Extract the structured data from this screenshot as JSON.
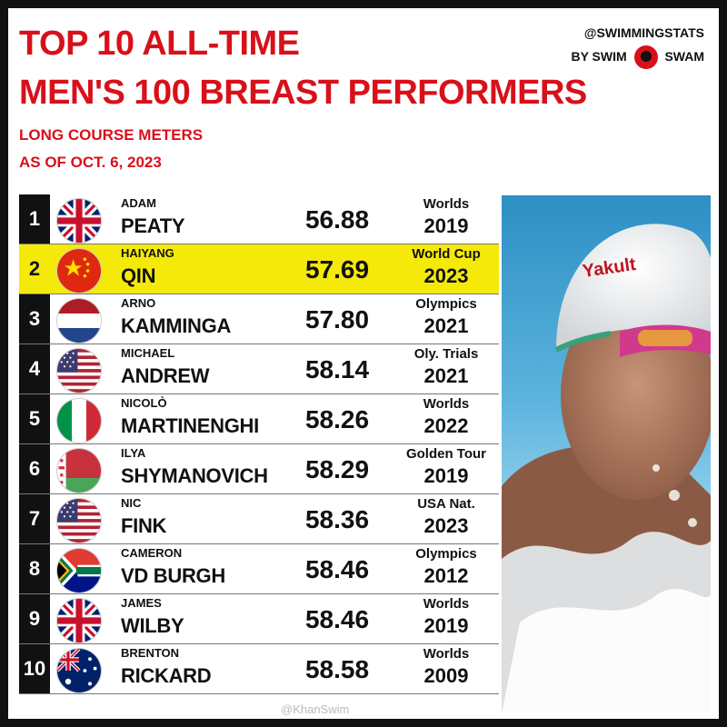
{
  "header": {
    "title_line1": "TOP 10 ALL-TIME",
    "title_line2": "MEN'S 100 BREAST PERFORMERS",
    "subtitle_line1": "LONG COURSE METERS",
    "subtitle_line2": "AS OF OCT. 6, 2023"
  },
  "brand": {
    "handle": "@SWIMMINGSTATS",
    "by": "BY SWIM",
    "name": "SWAM",
    "accent_color": "#d8101a"
  },
  "rows": [
    {
      "rank": "1",
      "first": "ADAM",
      "last": "PEATY",
      "time": "56.88",
      "meet": "Worlds",
      "year": "2019",
      "flag": "gb-flag-icon",
      "highlight": false
    },
    {
      "rank": "2",
      "first": "HAIYANG",
      "last": "QIN",
      "time": "57.69",
      "meet": "World Cup",
      "year": "2023",
      "flag": "cn-flag-icon",
      "highlight": true
    },
    {
      "rank": "3",
      "first": "ARNO",
      "last": "KAMMINGA",
      "time": "57.80",
      "meet": "Olympics",
      "year": "2021",
      "flag": "nl-flag-icon",
      "highlight": false
    },
    {
      "rank": "4",
      "first": "MICHAEL",
      "last": "ANDREW",
      "time": "58.14",
      "meet": "Oly. Trials",
      "year": "2021",
      "flag": "us-flag-icon",
      "highlight": false
    },
    {
      "rank": "5",
      "first": "NICOLÒ",
      "last": "MARTINENGHI",
      "time": "58.26",
      "meet": "Worlds",
      "year": "2022",
      "flag": "it-flag-icon",
      "highlight": false
    },
    {
      "rank": "6",
      "first": "ILYA",
      "last": "SHYMANOVICH",
      "time": "58.29",
      "meet": "Golden Tour",
      "year": "2019",
      "flag": "by-flag-icon",
      "highlight": false
    },
    {
      "rank": "7",
      "first": "NIC",
      "last": "FINK",
      "time": "58.36",
      "meet": "USA Nat.",
      "year": "2023",
      "flag": "us-flag-icon",
      "highlight": false
    },
    {
      "rank": "8",
      "first": "CAMERON",
      "last": "VD BURGH",
      "time": "58.46",
      "meet": "Olympics",
      "year": "2012",
      "flag": "za-flag-icon",
      "highlight": false
    },
    {
      "rank": "9",
      "first": "JAMES",
      "last": "WILBY",
      "time": "58.46",
      "meet": "Worlds",
      "year": "2019",
      "flag": "gb-flag-icon",
      "highlight": false
    },
    {
      "rank": "10",
      "first": "BRENTON",
      "last": "RICKARD",
      "time": "58.58",
      "meet": "Worlds",
      "year": "2009",
      "flag": "au-flag-icon",
      "highlight": false
    }
  ],
  "photo": {
    "cap_text": "Yakult",
    "icon": "swimmer-photo"
  },
  "watermark": "@KhanSwim"
}
